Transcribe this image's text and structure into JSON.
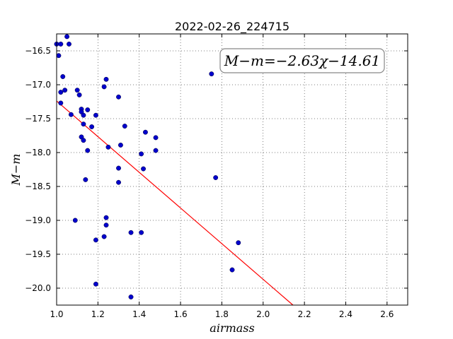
{
  "chart_data": {
    "type": "scatter",
    "title": "2022-02-26_224715",
    "xlabel": "airmass",
    "ylabel": "M−m",
    "xlim": [
      1.0,
      2.7
    ],
    "ylim": [
      -16.25,
      -20.25
    ],
    "grid": true,
    "xticks": [
      1.0,
      1.2,
      1.4,
      1.6,
      1.8,
      2.0,
      2.2,
      2.4,
      2.6
    ],
    "xtick_labels": [
      "1.0",
      "1.2",
      "1.4",
      "1.6",
      "1.8",
      "2.0",
      "2.2",
      "2.4",
      "2.6"
    ],
    "yticks": [
      -16.5,
      -17.0,
      -17.5,
      -18.0,
      -18.5,
      -19.0,
      -19.5,
      -20.0
    ],
    "ytick_labels": [
      "−16.5",
      "−17.0",
      "−17.5",
      "−18.0",
      "−18.5",
      "−19.0",
      "−19.5",
      "−20.0"
    ],
    "annotation": "M−m=−2.63χ−14.61",
    "fit": {
      "slope": -2.63,
      "intercept": -14.61,
      "color": "#ff0000"
    },
    "point_color": "#0000cc",
    "points": [
      {
        "x": 1.0,
        "y": -16.4
      },
      {
        "x": 1.01,
        "y": -16.57
      },
      {
        "x": 1.02,
        "y": -16.4
      },
      {
        "x": 1.05,
        "y": -16.29
      },
      {
        "x": 1.06,
        "y": -16.4
      },
      {
        "x": 1.03,
        "y": -16.88
      },
      {
        "x": 1.02,
        "y": -17.11
      },
      {
        "x": 1.04,
        "y": -17.08
      },
      {
        "x": 1.02,
        "y": -17.27
      },
      {
        "x": 1.07,
        "y": -17.44
      },
      {
        "x": 1.1,
        "y": -17.08
      },
      {
        "x": 1.11,
        "y": -17.15
      },
      {
        "x": 1.12,
        "y": -17.36
      },
      {
        "x": 1.12,
        "y": -17.4
      },
      {
        "x": 1.13,
        "y": -17.45
      },
      {
        "x": 1.13,
        "y": -17.58
      },
      {
        "x": 1.15,
        "y": -17.37
      },
      {
        "x": 1.19,
        "y": -17.45
      },
      {
        "x": 1.17,
        "y": -17.62
      },
      {
        "x": 1.12,
        "y": -17.77
      },
      {
        "x": 1.13,
        "y": -17.82
      },
      {
        "x": 1.15,
        "y": -17.97
      },
      {
        "x": 1.14,
        "y": -18.4
      },
      {
        "x": 1.09,
        "y": -19.0
      },
      {
        "x": 1.24,
        "y": -16.92
      },
      {
        "x": 1.23,
        "y": -17.03
      },
      {
        "x": 1.3,
        "y": -17.18
      },
      {
        "x": 1.33,
        "y": -17.61
      },
      {
        "x": 1.25,
        "y": -17.92
      },
      {
        "x": 1.31,
        "y": -17.89
      },
      {
        "x": 1.3,
        "y": -18.23
      },
      {
        "x": 1.3,
        "y": -18.44
      },
      {
        "x": 1.43,
        "y": -17.7
      },
      {
        "x": 1.48,
        "y": -17.78
      },
      {
        "x": 1.48,
        "y": -17.97
      },
      {
        "x": 1.41,
        "y": -18.02
      },
      {
        "x": 1.42,
        "y": -18.24
      },
      {
        "x": 1.24,
        "y": -18.96
      },
      {
        "x": 1.24,
        "y": -19.07
      },
      {
        "x": 1.23,
        "y": -19.24
      },
      {
        "x": 1.19,
        "y": -19.29
      },
      {
        "x": 1.19,
        "y": -19.94
      },
      {
        "x": 1.36,
        "y": -19.18
      },
      {
        "x": 1.41,
        "y": -19.18
      },
      {
        "x": 1.36,
        "y": -20.13
      },
      {
        "x": 1.75,
        "y": -16.84
      },
      {
        "x": 1.77,
        "y": -18.37
      },
      {
        "x": 1.88,
        "y": -19.33
      },
      {
        "x": 1.85,
        "y": -19.73
      }
    ]
  }
}
